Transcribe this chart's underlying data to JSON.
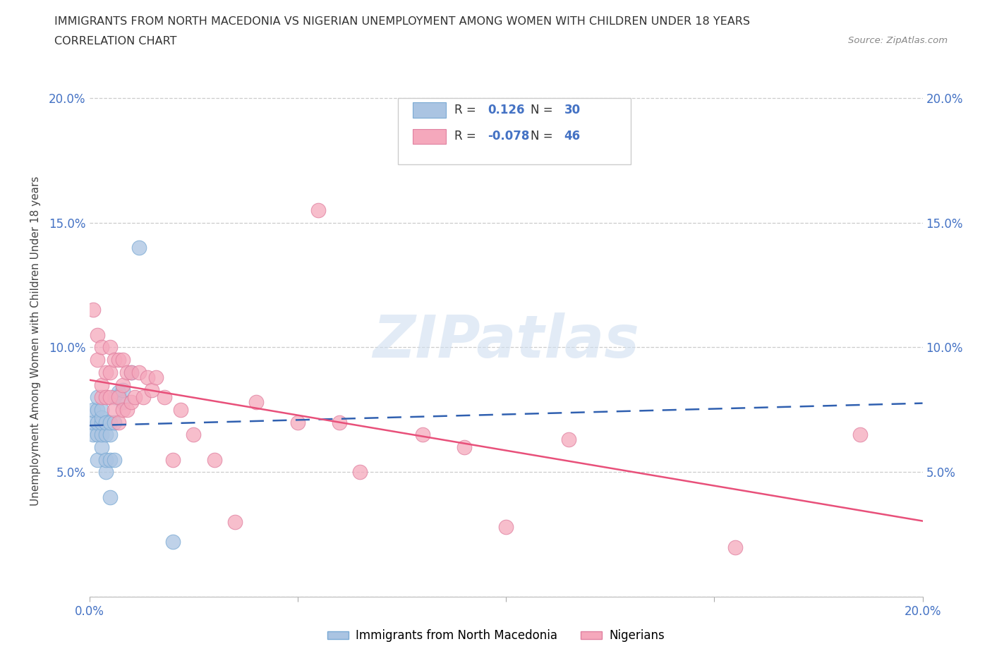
{
  "title_line1": "IMMIGRANTS FROM NORTH MACEDONIA VS NIGERIAN UNEMPLOYMENT AMONG WOMEN WITH CHILDREN UNDER 18 YEARS",
  "title_line2": "CORRELATION CHART",
  "source": "Source: ZipAtlas.com",
  "ylabel": "Unemployment Among Women with Children Under 18 years",
  "xlim": [
    0.0,
    0.2
  ],
  "ylim": [
    0.0,
    0.205
  ],
  "yticks": [
    0.0,
    0.05,
    0.1,
    0.15,
    0.2
  ],
  "ytick_labels": [
    "",
    "5.0%",
    "10.0%",
    "15.0%",
    "20.0%"
  ],
  "xticks": [
    0.0,
    0.05,
    0.1,
    0.15,
    0.2
  ],
  "xtick_labels": [
    "0.0%",
    "",
    "",
    "",
    "20.0%"
  ],
  "blue_R": 0.126,
  "blue_N": 30,
  "pink_R": -0.078,
  "pink_N": 46,
  "blue_color": "#aac4e2",
  "pink_color": "#f5a8bc",
  "blue_line_color": "#3060b0",
  "pink_line_color": "#e8507a",
  "watermark": "ZIPatlas",
  "blue_scatter_x": [
    0.001,
    0.001,
    0.001,
    0.002,
    0.002,
    0.002,
    0.002,
    0.002,
    0.003,
    0.003,
    0.003,
    0.003,
    0.003,
    0.004,
    0.004,
    0.004,
    0.004,
    0.005,
    0.005,
    0.005,
    0.005,
    0.006,
    0.006,
    0.006,
    0.007,
    0.008,
    0.008,
    0.01,
    0.012,
    0.02
  ],
  "blue_scatter_y": [
    0.065,
    0.07,
    0.075,
    0.055,
    0.065,
    0.07,
    0.075,
    0.08,
    0.06,
    0.065,
    0.07,
    0.072,
    0.075,
    0.05,
    0.055,
    0.065,
    0.07,
    0.04,
    0.055,
    0.065,
    0.07,
    0.055,
    0.07,
    0.08,
    0.082,
    0.078,
    0.083,
    0.09,
    0.14,
    0.022
  ],
  "pink_scatter_x": [
    0.001,
    0.002,
    0.002,
    0.003,
    0.003,
    0.003,
    0.004,
    0.004,
    0.005,
    0.005,
    0.005,
    0.006,
    0.006,
    0.007,
    0.007,
    0.007,
    0.008,
    0.008,
    0.008,
    0.009,
    0.009,
    0.01,
    0.01,
    0.011,
    0.012,
    0.013,
    0.014,
    0.015,
    0.016,
    0.018,
    0.02,
    0.022,
    0.025,
    0.03,
    0.035,
    0.04,
    0.05,
    0.055,
    0.06,
    0.065,
    0.08,
    0.09,
    0.1,
    0.115,
    0.155,
    0.185
  ],
  "pink_scatter_y": [
    0.115,
    0.095,
    0.105,
    0.08,
    0.085,
    0.1,
    0.08,
    0.09,
    0.08,
    0.09,
    0.1,
    0.075,
    0.095,
    0.07,
    0.08,
    0.095,
    0.075,
    0.085,
    0.095,
    0.075,
    0.09,
    0.078,
    0.09,
    0.08,
    0.09,
    0.08,
    0.088,
    0.083,
    0.088,
    0.08,
    0.055,
    0.075,
    0.065,
    0.055,
    0.03,
    0.078,
    0.07,
    0.155,
    0.07,
    0.05,
    0.065,
    0.06,
    0.028,
    0.063,
    0.02,
    0.065
  ]
}
